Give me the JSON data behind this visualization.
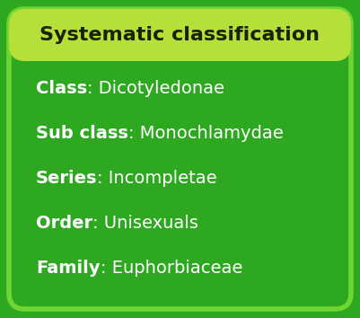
{
  "title": "Systematic classification",
  "title_bg_color": "#b5e03a",
  "main_bg_color": "#2ea820",
  "border_color": "#6ed632",
  "text_color_white": "#ffffff",
  "text_color_dark": "#1a2200",
  "rows": [
    {
      "bold": "Class",
      "normal": ": Dicotyledonae"
    },
    {
      "bold": "Sub class",
      "normal": ": Monochlamydae"
    },
    {
      "bold": "Series",
      "normal": ": Incompletae"
    },
    {
      "bold": "Order",
      "normal": ": Unisexuals"
    },
    {
      "bold": "Family",
      "normal": ": Euphorbiaceae"
    }
  ],
  "title_fontsize": 16,
  "row_fontsize": 14,
  "fig_width": 4.01,
  "fig_height": 3.54,
  "dpi": 100
}
